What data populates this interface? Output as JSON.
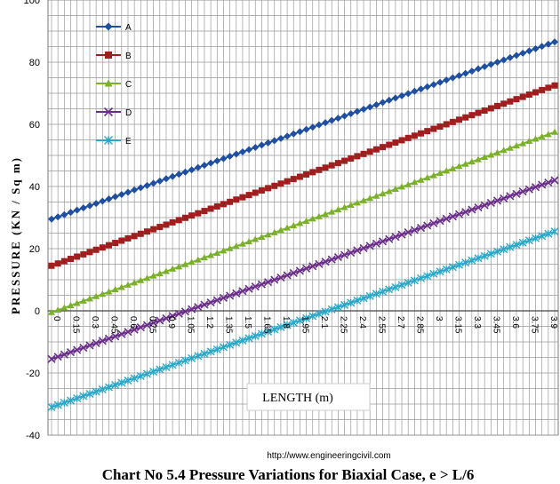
{
  "chart_data": {
    "type": "line",
    "title": "",
    "ylabel": "PRESSURE  (KN / Sq m)",
    "xlabel": "LENGTH (m)",
    "ylim": [
      -40,
      100
    ],
    "y_ticks": [
      "100",
      "80",
      "60",
      "40",
      "20",
      "0",
      "-20",
      "-40"
    ],
    "x_ticks": [
      "0",
      "0.15",
      "0.3",
      "0.45",
      "0.6",
      "0.75",
      "0.9",
      "1.05",
      "1.2",
      "1.35",
      "1.5",
      "1.65",
      "1.8",
      "1.95",
      "2.1",
      "2.25",
      "2.4",
      "2.55",
      "2.7",
      "2.85",
      "3",
      "3.15",
      "3.3",
      "3.45",
      "3.6",
      "3.75",
      "3.9"
    ],
    "x_start": 0,
    "x_end": 3.95,
    "x_step": 0.05,
    "grid": true,
    "legend_position": "top-left",
    "series": [
      {
        "name": "A",
        "color": "#1f4fa0",
        "marker": "diamond",
        "y_start": 29.5,
        "y_end": 86.5
      },
      {
        "name": "B",
        "color": "#a01e1e",
        "marker": "square",
        "y_start": 14.5,
        "y_end": 72.5
      },
      {
        "name": "C",
        "color": "#7ab02a",
        "marker": "triangle",
        "y_start": -0.5,
        "y_end": 57.5
      },
      {
        "name": "D",
        "color": "#6a2d8a",
        "marker": "x",
        "y_start": -15.5,
        "y_end": 42.0
      },
      {
        "name": "E",
        "color": "#2aa7c8",
        "marker": "star",
        "y_start": -31.0,
        "y_end": 25.5
      }
    ]
  },
  "footer": {
    "url": "http://www.engineeringcivil.com",
    "caption": "Chart No 5.4    Pressure Variations for Biaxial Case, e > L/6"
  }
}
